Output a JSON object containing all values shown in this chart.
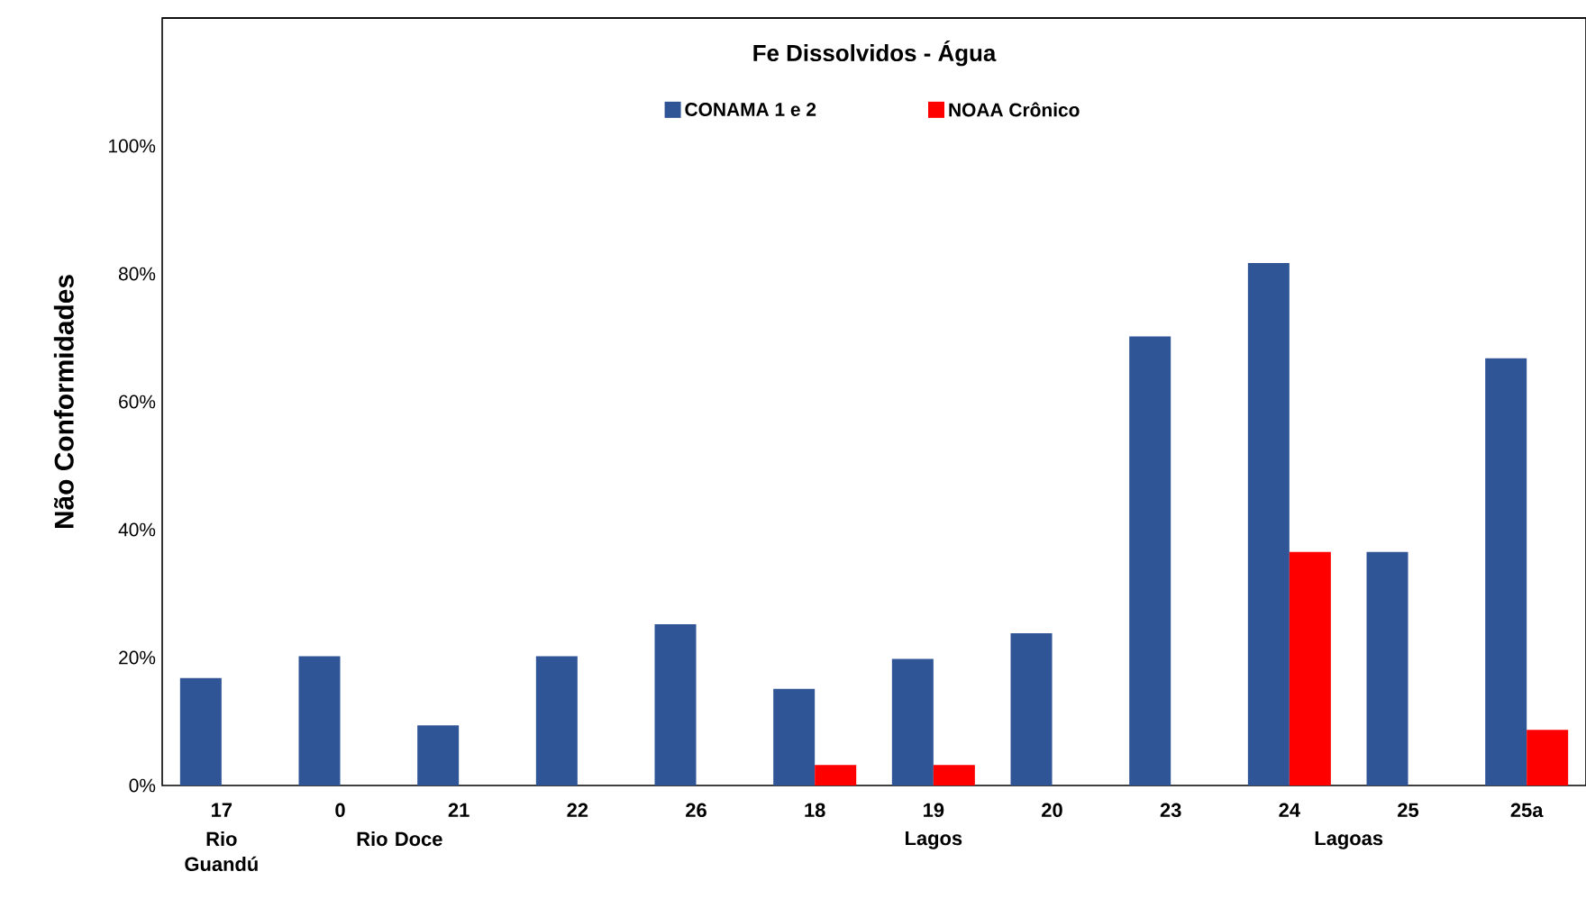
{
  "chart_data": {
    "type": "bar",
    "title": "Fe  Dissolvidos - Água",
    "ylabel": "Não Conformidades",
    "categories": [
      "17",
      "0",
      "21",
      "22",
      "26",
      "18",
      "19",
      "20",
      "23",
      "24",
      "25",
      "25a"
    ],
    "series": [
      {
        "name": "CONAMA 1 e 2",
        "color": "#2f5597",
        "values": [
          16.8,
          20.2,
          9.4,
          20.2,
          25.2,
          15.1,
          19.8,
          23.8,
          70.2,
          81.7,
          36.5,
          66.8
        ]
      },
      {
        "name": "NOAA Crônico",
        "color": "#ff0000",
        "values": [
          0,
          0,
          0,
          0,
          0,
          3.2,
          3.2,
          0,
          0,
          36.5,
          0,
          8.7
        ]
      }
    ],
    "ylim": [
      0,
      120
    ],
    "yticks": [
      {
        "value": 0,
        "label": "0%"
      },
      {
        "value": 20,
        "label": "20%"
      },
      {
        "value": 40,
        "label": "40%"
      },
      {
        "value": 60,
        "label": "60%"
      },
      {
        "value": 80,
        "label": "80%"
      },
      {
        "value": 100,
        "label": "100%"
      }
    ],
    "legend": "top",
    "annotations": [
      "Rio Guandú",
      "Rio Doce",
      "Lagos",
      "Lagoas"
    ]
  }
}
